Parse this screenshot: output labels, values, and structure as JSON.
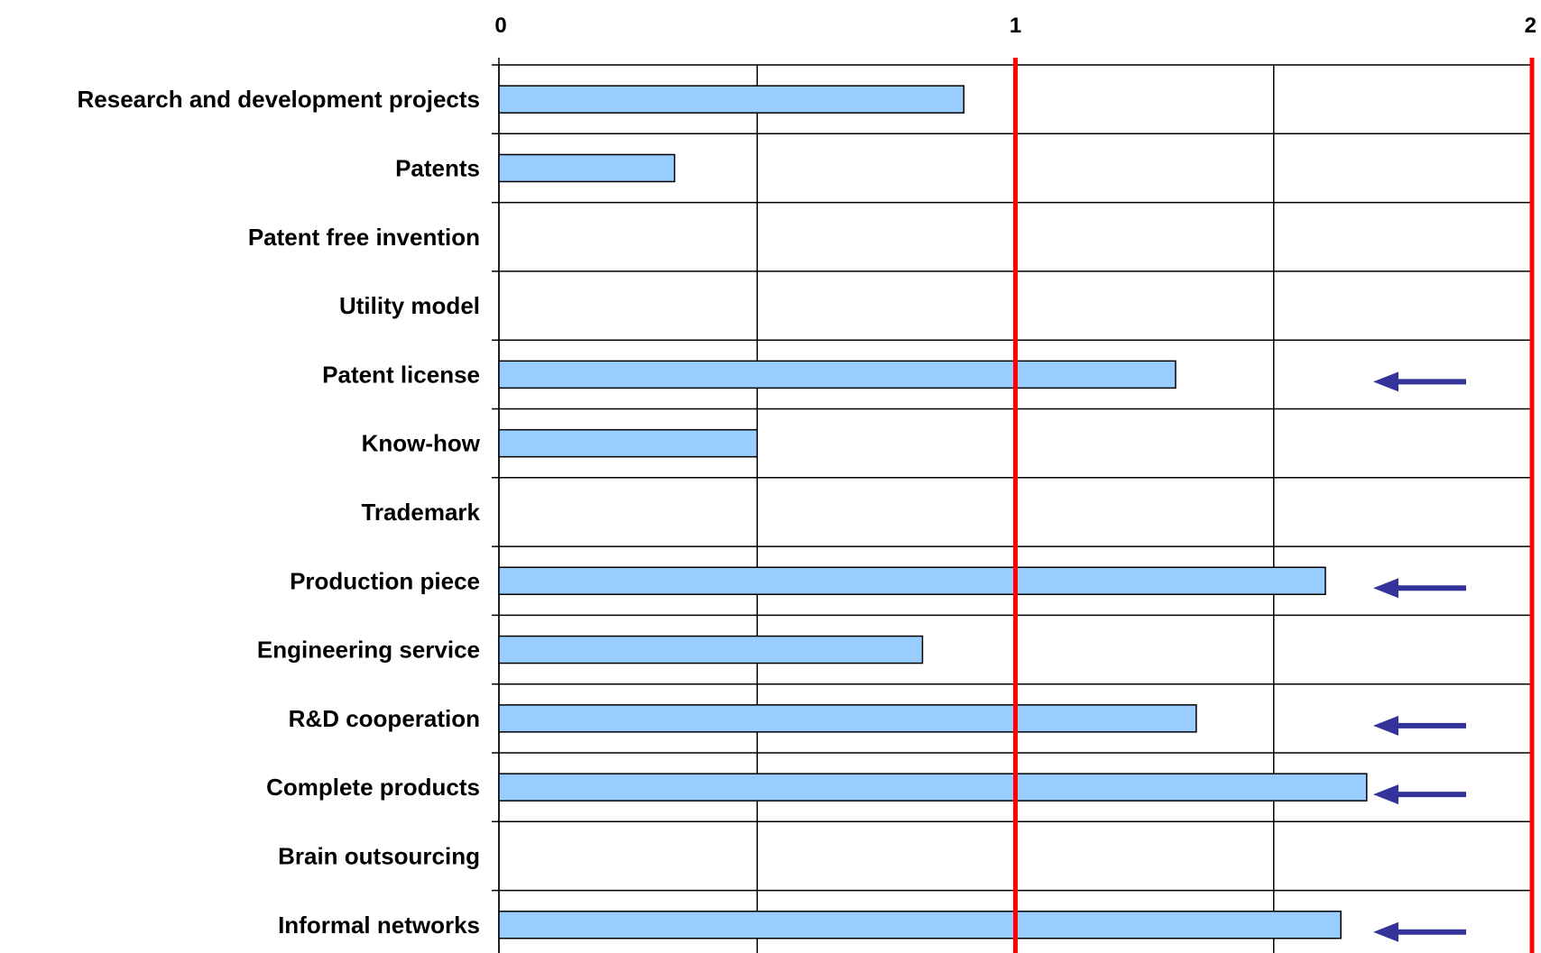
{
  "chart_data": {
    "type": "bar",
    "orientation": "horizontal",
    "categories": [
      "Research and development projects",
      "Patents",
      "Patent free invention",
      "Utility model",
      "Patent license",
      "Know-how",
      "Trademark",
      "Production piece",
      "Engineering service",
      "R&D cooperation",
      "Complete products",
      "Brain outsourcing",
      "Informal networks"
    ],
    "values": [
      0.9,
      0.34,
      0,
      0,
      1.31,
      0.5,
      0,
      1.6,
      0.82,
      1.35,
      1.68,
      0,
      1.63
    ],
    "xlim": [
      0,
      2
    ],
    "x_ticks": [
      "0",
      "1",
      "2"
    ],
    "reference_lines": [
      1,
      2
    ],
    "arrows": [
      "Patent license",
      "Production piece",
      "R&D cooperation",
      "Complete products",
      "Informal networks"
    ],
    "title": "",
    "xlabel": "",
    "ylabel": "",
    "grid": true,
    "legend": "none"
  },
  "colors": {
    "bar_fill": "#99ccff",
    "bar_stroke": "#000000",
    "reference_line": "#ff0000",
    "arrow": "#333399",
    "grid": "#000000"
  }
}
